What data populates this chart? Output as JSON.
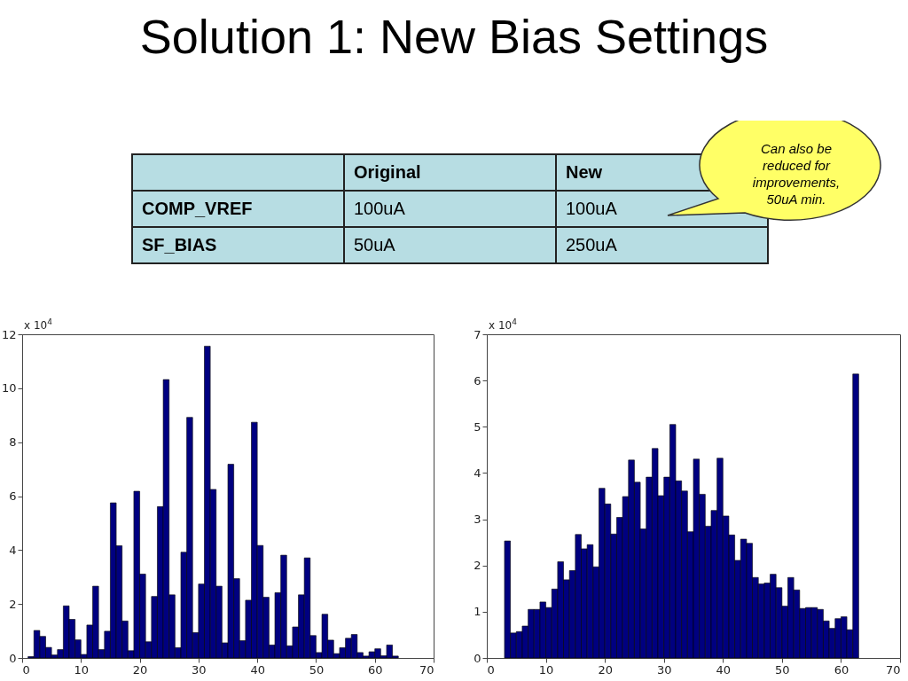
{
  "chart_data": [
    {
      "type": "other",
      "title": "Solution 1: New Bias Settings",
      "categories": [
        null,
        "Original",
        "New"
      ],
      "y_categories": [
        "COMP_VREF",
        "SF_BIAS"
      ],
      "cell_labels": [
        [
          "100uA",
          "100uA"
        ],
        [
          "50uA",
          "250uA"
        ]
      ],
      "annotations": [
        "Can also be reduced for improvements, 50uA min."
      ]
    },
    {
      "type": "histogram",
      "color": "#000080",
      "bins": [
        1,
        2,
        3,
        4,
        5,
        6,
        7,
        8,
        9,
        10,
        11,
        12,
        13,
        14,
        15,
        16,
        17,
        18,
        19,
        20,
        21,
        22,
        23,
        24,
        25,
        26,
        27,
        28,
        29,
        30,
        31,
        32,
        33,
        34,
        35,
        36,
        37,
        38,
        39,
        40,
        41,
        42,
        43,
        44,
        45,
        46,
        47,
        48,
        49,
        50,
        51,
        52,
        53,
        54,
        55,
        56,
        57,
        58,
        59,
        60,
        61,
        62,
        63,
        64
      ],
      "values": [
        0.05,
        1.02,
        0.8,
        0.39,
        0.11,
        0.31,
        1.93,
        1.43,
        0.67,
        0.13,
        1.22,
        2.66,
        0.31,
        0.99,
        5.75,
        4.16,
        1.37,
        0.27,
        6.18,
        3.11,
        0.6,
        2.28,
        5.61,
        10.32,
        2.34,
        0.38,
        3.92,
        8.92,
        0.94,
        2.74,
        11.56,
        6.25,
        2.66,
        0.56,
        7.18,
        2.94,
        0.64,
        2.14,
        8.74,
        4.17,
        2.25,
        0.48,
        2.42,
        3.81,
        0.45,
        1.15,
        2.34,
        3.71,
        0.83,
        0.2,
        1.62,
        0.66,
        0.16,
        0.38,
        0.73,
        0.87,
        0.2,
        0.07,
        0.23,
        0.34,
        0.08,
        0.48,
        0.07
      ],
      "xlim": [
        0,
        70
      ],
      "xticks": [
        0,
        10,
        20,
        30,
        40,
        50,
        60,
        70
      ],
      "ylim": [
        0,
        12
      ],
      "yticks": [
        0,
        2,
        4,
        6,
        8,
        10,
        12
      ],
      "annotations": [
        "x 10$^{4}$"
      ]
    },
    {
      "type": "histogram",
      "color": "#000080",
      "bins": [
        3,
        4,
        5,
        6,
        7,
        8,
        9,
        10,
        11,
        12,
        13,
        14,
        15,
        16,
        17,
        18,
        19,
        20,
        21,
        22,
        23,
        24,
        25,
        26,
        27,
        28,
        29,
        30,
        31,
        32,
        33,
        34,
        35,
        36,
        37,
        38,
        39,
        40,
        41,
        42,
        43,
        44,
        45,
        46,
        47,
        48,
        49,
        50,
        51,
        52,
        53,
        54,
        55,
        56,
        57,
        58,
        59,
        60,
        61,
        62,
        63
      ],
      "values": [
        2.53,
        0.54,
        0.57,
        0.69,
        1.05,
        1.05,
        1.21,
        1.09,
        1.49,
        2.08,
        1.69,
        1.89,
        2.67,
        2.36,
        2.45,
        1.97,
        3.67,
        3.33,
        2.68,
        3.04,
        3.49,
        4.28,
        3.8,
        2.79,
        3.91,
        4.53,
        3.51,
        3.91,
        5.05,
        3.83,
        3.61,
        2.73,
        4.3,
        3.54,
        2.85,
        3.19,
        4.32,
        3.07,
        2.66,
        2.11,
        2.57,
        2.48,
        1.74,
        1.6,
        1.62,
        1.81,
        1.52,
        1.12,
        1.74,
        1.47,
        1.07,
        1.09,
        1.09,
        1.05,
        0.8,
        0.64,
        0.85,
        0.89,
        0.61,
        6.14
      ],
      "xlim": [
        0,
        70
      ],
      "xticks": [
        0,
        10,
        20,
        30,
        40,
        50,
        60,
        70
      ],
      "ylim": [
        0,
        7
      ],
      "yticks": [
        0,
        1,
        2,
        3,
        4,
        5,
        6,
        7
      ],
      "annotations": [
        "x 10$^{4}$"
      ]
    }
  ]
}
